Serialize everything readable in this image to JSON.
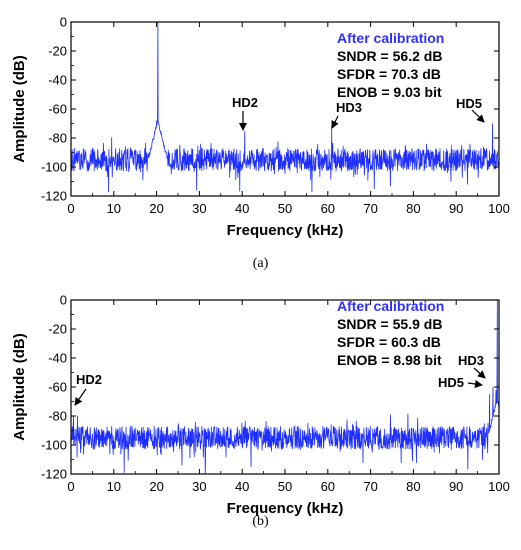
{
  "figure": {
    "caption_a": "(a)",
    "caption_b": "(b)"
  },
  "chart_data": [
    {
      "id": "a",
      "type": "line",
      "xlabel": "Frequency (kHz)",
      "ylabel": "Amplitude (dB)",
      "xlim": [
        0,
        100
      ],
      "ylim": [
        -120,
        0
      ],
      "xticks": [
        0,
        10,
        20,
        30,
        40,
        50,
        60,
        70,
        80,
        90,
        100
      ],
      "yticks": [
        0,
        -20,
        -40,
        -60,
        -80,
        -100,
        -120
      ],
      "grid": false,
      "line_color": "#1f2fff",
      "noise_floor_db": -95,
      "noise_spread_db": 8,
      "spikes": [
        {
          "x": 20.3,
          "y": 0
        },
        {
          "x": 20.0,
          "y": -68
        },
        {
          "x": 40.6,
          "y": -75
        },
        {
          "x": 60.9,
          "y": -72
        },
        {
          "x": 98.5,
          "y": -70
        }
      ],
      "info": {
        "title": "After calibration",
        "sndr": "SNDR = 56.2 dB",
        "sfdr": "SFDR = 70.3 dB",
        "enob": "ENOB = 9.03 bit"
      },
      "annotations": [
        {
          "label": "HD2",
          "x": 40.6,
          "y": -75
        },
        {
          "label": "HD3",
          "x": 60.9,
          "y": -72
        },
        {
          "label": "HD5",
          "x": 98.5,
          "y": -70
        }
      ]
    },
    {
      "id": "b",
      "type": "line",
      "xlabel": "Frequency (kHz)",
      "ylabel": "Amplitude (dB)",
      "xlim": [
        0,
        100
      ],
      "ylim": [
        -120,
        0
      ],
      "xticks": [
        0,
        10,
        20,
        30,
        40,
        50,
        60,
        70,
        80,
        90,
        100
      ],
      "yticks": [
        0,
        -20,
        -40,
        -60,
        -80,
        -100,
        -120
      ],
      "grid": false,
      "line_color": "#1f2fff",
      "noise_floor_db": -95,
      "noise_spread_db": 8,
      "spikes": [
        {
          "x": 99.6,
          "y": 0
        },
        {
          "x": 99.3,
          "y": -62
        },
        {
          "x": 0.6,
          "y": -80
        },
        {
          "x": 97.8,
          "y": -65
        },
        {
          "x": 98.6,
          "y": -60
        }
      ],
      "info": {
        "title": "After calibration",
        "sndr": "SNDR = 55.9 dB",
        "sfdr": "SFDR = 60.3 dB",
        "enob": "ENOB = 8.98 bit"
      },
      "annotations": [
        {
          "label": "HD2",
          "x": 0.6,
          "y": -80
        },
        {
          "label": "HD5",
          "x": 97.8,
          "y": -65
        },
        {
          "label": "HD3",
          "x": 98.6,
          "y": -60
        }
      ]
    }
  ]
}
